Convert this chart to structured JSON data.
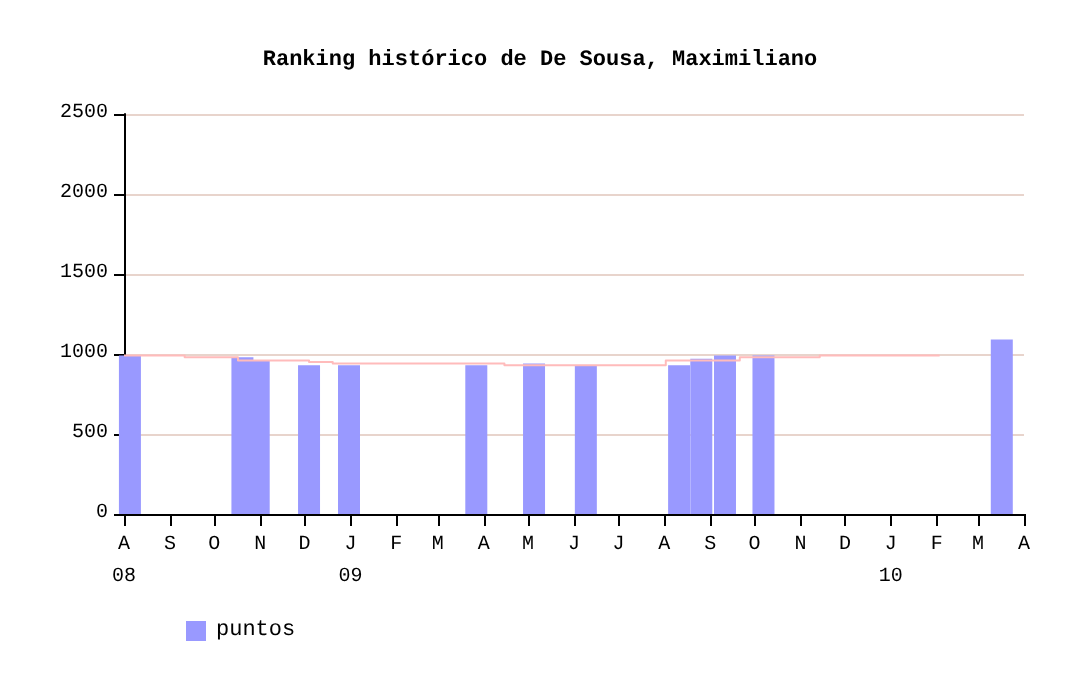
{
  "chart_data": {
    "type": "bar",
    "title": "Ranking histórico de De Sousa, Maximiliano",
    "xlim": [
      "2008-08-01",
      "2010-04-01"
    ],
    "xticks": [
      {
        "value": "2008-08-01",
        "label": "A\n08"
      },
      {
        "value": "2008-09-01",
        "label": "S"
      },
      {
        "value": "2008-10-01",
        "label": "O"
      },
      {
        "value": "2008-11-01",
        "label": "N"
      },
      {
        "value": "2008-12-01",
        "label": "D"
      },
      {
        "value": "2009-01-01",
        "label": "J\n09"
      },
      {
        "value": "2009-02-01",
        "label": "F"
      },
      {
        "value": "2009-03-01",
        "label": "M"
      },
      {
        "value": "2009-04-01",
        "label": "A"
      },
      {
        "value": "2009-05-01",
        "label": "M"
      },
      {
        "value": "2009-06-01",
        "label": "J"
      },
      {
        "value": "2009-07-01",
        "label": "J"
      },
      {
        "value": "2009-08-01",
        "label": "A"
      },
      {
        "value": "2009-09-01",
        "label": "S"
      },
      {
        "value": "2009-10-01",
        "label": "O"
      },
      {
        "value": "2009-11-01",
        "label": "N"
      },
      {
        "value": "2009-12-01",
        "label": "D"
      },
      {
        "value": "2010-01-01",
        "label": "J\n10"
      },
      {
        "value": "2010-02-01",
        "label": "F"
      },
      {
        "value": "2010-03-01",
        "label": "M"
      },
      {
        "value": "2010-04-01",
        "label": "A"
      }
    ],
    "ylim": [
      0,
      2500
    ],
    "yticks": [
      0,
      500,
      1000,
      1500,
      2000,
      2500
    ],
    "grid": "y",
    "legend": "bottom left",
    "series": [
      {
        "name": "puntos",
        "color": "#9999ff",
        "x": [
          "2008-08-05",
          "2008-10-20",
          "2008-10-31",
          "2008-12-04",
          "2008-12-31",
          "2009-03-27",
          "2009-05-05",
          "2009-06-09",
          "2009-08-11",
          "2009-08-26",
          "2009-09-11",
          "2009-10-07",
          "2010-03-17"
        ],
        "values": [
          990,
          980,
          960,
          930,
          930,
          930,
          940,
          930,
          930,
          970,
          990,
          990,
          1090
        ]
      },
      {
        "type": "step",
        "color": "#ffbbbb",
        "x": [
          "2008-08-01",
          "2008-09-11",
          "2008-10-17",
          "2008-12-04",
          "2008-12-20",
          "2009-04-15",
          "2009-08-02",
          "2009-09-21",
          "2009-11-14",
          "2010-02-03"
        ],
        "values": [
          990,
          980,
          960,
          950,
          940,
          930,
          960,
          980,
          990,
          990
        ]
      }
    ]
  }
}
